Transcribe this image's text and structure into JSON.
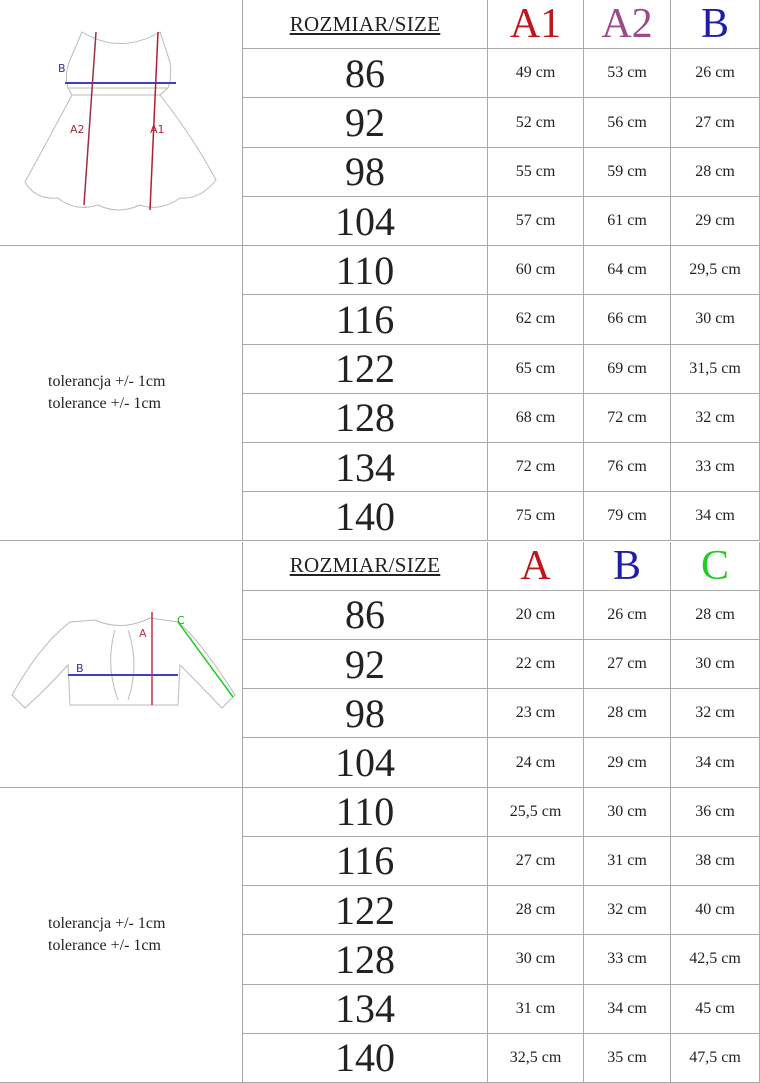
{
  "tables": [
    {
      "size_label": "ROZMIAR/SIZE",
      "columns": [
        {
          "label": "A1",
          "color": "#c0141c"
        },
        {
          "label": "A2",
          "color": "#9a4a8a"
        },
        {
          "label": "B",
          "color": "#1f1fa6"
        }
      ],
      "diagram_labels": [
        "B",
        "A2",
        "A1"
      ],
      "note": [
        "tolerancja +/- 1cm",
        "tolerance +/- 1cm"
      ],
      "rows": [
        {
          "size": "86",
          "values": [
            "49 cm",
            "53 cm",
            "26 cm"
          ]
        },
        {
          "size": "92",
          "values": [
            "52 cm",
            "56 cm",
            "27 cm"
          ]
        },
        {
          "size": "98",
          "values": [
            "55 cm",
            "59 cm",
            "28 cm"
          ]
        },
        {
          "size": "104",
          "values": [
            "57 cm",
            "61 cm",
            "29 cm"
          ]
        },
        {
          "size": "110",
          "values": [
            "60 cm",
            "64 cm",
            "29,5 cm"
          ]
        },
        {
          "size": "116",
          "values": [
            "62 cm",
            "66 cm",
            "30 cm"
          ]
        },
        {
          "size": "122",
          "values": [
            "65 cm",
            "69 cm",
            "31,5 cm"
          ]
        },
        {
          "size": "128",
          "values": [
            "68 cm",
            "72 cm",
            "32 cm"
          ]
        },
        {
          "size": "134",
          "values": [
            "72 cm",
            "76 cm",
            "33 cm"
          ]
        },
        {
          "size": "140",
          "values": [
            "75 cm",
            "79 cm",
            "34 cm"
          ]
        }
      ]
    },
    {
      "size_label": "ROZMIAR/SIZE",
      "columns": [
        {
          "label": "A",
          "color": "#c0141c"
        },
        {
          "label": "B",
          "color": "#1f1fa6"
        },
        {
          "label": "C",
          "color": "#22cc22"
        }
      ],
      "diagram_labels": [
        "B",
        "A",
        "C"
      ],
      "note": [
        "tolerancja +/- 1cm",
        "tolerance +/- 1cm"
      ],
      "rows": [
        {
          "size": "86",
          "values": [
            "20 cm",
            "26 cm",
            "28 cm"
          ]
        },
        {
          "size": "92",
          "values": [
            "22 cm",
            "27 cm",
            "30 cm"
          ]
        },
        {
          "size": "98",
          "values": [
            "23 cm",
            "28 cm",
            "32 cm"
          ]
        },
        {
          "size": "104",
          "values": [
            "24 cm",
            "29 cm",
            "34 cm"
          ]
        },
        {
          "size": "110",
          "values": [
            "25,5 cm",
            "30 cm",
            "36 cm"
          ]
        },
        {
          "size": "116",
          "values": [
            "27 cm",
            "31 cm",
            "38 cm"
          ]
        },
        {
          "size": "122",
          "values": [
            "28 cm",
            "32 cm",
            "40 cm"
          ]
        },
        {
          "size": "128",
          "values": [
            "30 cm",
            "33 cm",
            "42,5 cm"
          ]
        },
        {
          "size": "134",
          "values": [
            "31 cm",
            "34 cm",
            "45 cm"
          ]
        },
        {
          "size": "140",
          "values": [
            "32,5 cm",
            "35 cm",
            "47,5 cm"
          ]
        }
      ]
    }
  ]
}
